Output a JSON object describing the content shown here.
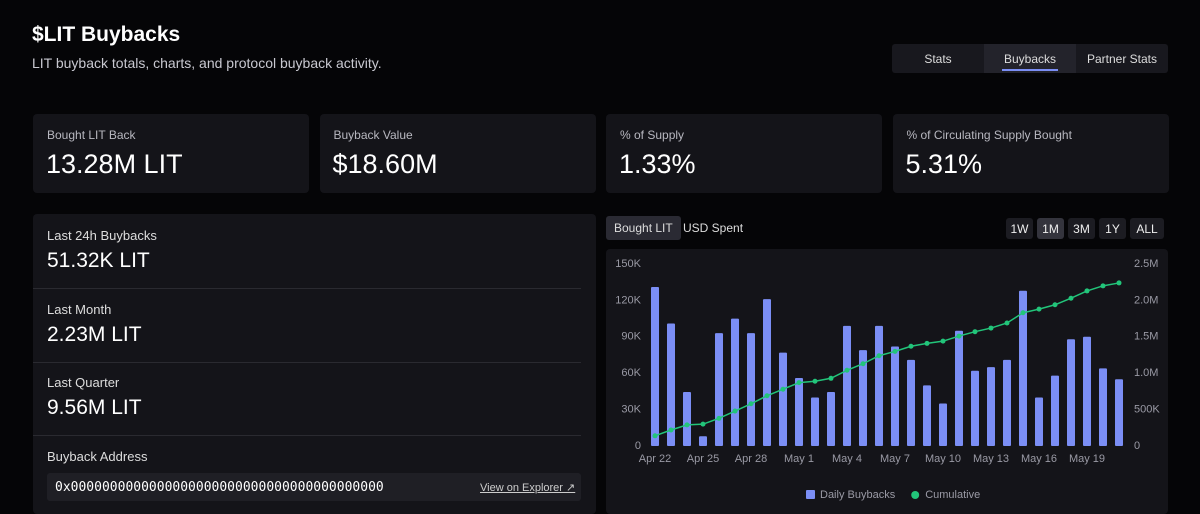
{
  "header": {
    "title": "$LIT Buybacks",
    "subtitle": "LIT buyback totals, charts, and protocol buyback activity."
  },
  "tabs": {
    "items": [
      "Stats",
      "Buybacks",
      "Partner Stats"
    ],
    "active": 1
  },
  "stats": [
    {
      "label": "Bought LIT Back",
      "value": "13.28M LIT"
    },
    {
      "label": "Buyback Value",
      "value": "$18.60M"
    },
    {
      "label": "% of Supply",
      "value": "1.33%"
    },
    {
      "label": "% of Circulating Supply Bought",
      "value": "5.31%"
    }
  ],
  "summary": [
    {
      "label": "Last 24h Buybacks",
      "value": "51.32K LIT"
    },
    {
      "label": "Last Month",
      "value": "2.23M LIT"
    },
    {
      "label": "Last Quarter",
      "value": "9.56M LIT"
    }
  ],
  "address": {
    "label": "Buyback Address",
    "value": "0x0000000000000000000000000000000000000000",
    "link": "View on Explorer ↗"
  },
  "chart_tabs": {
    "items": [
      "Bought LIT",
      "USD Spent"
    ],
    "active": 0
  },
  "ranges": {
    "items": [
      "1W",
      "1M",
      "3M",
      "1Y",
      "ALL"
    ],
    "active": 1
  },
  "chart_data": {
    "type": "bar",
    "categories": [
      "Apr 22",
      null,
      null,
      "Apr 25",
      null,
      null,
      "Apr 28",
      null,
      null,
      "May 1",
      null,
      null,
      "May 4",
      null,
      null,
      "May 7",
      null,
      null,
      "May 10",
      null,
      null,
      "May 13",
      null,
      null,
      "May 16",
      null,
      null,
      "May 19",
      null,
      null
    ],
    "series": [
      {
        "name": "Daily Buybacks",
        "color": "#7b8ef5",
        "values": [
          131000,
          101000,
          44500,
          8000,
          93000,
          105000,
          93000,
          121000,
          77000,
          56000,
          40000,
          44500,
          99000,
          79000,
          99000,
          82000,
          71000,
          50000,
          35000,
          95000,
          62000,
          65000,
          71000,
          128000,
          40000,
          58000,
          88000,
          90000,
          64000,
          55000
        ]
      },
      {
        "name": "Cumulative",
        "color": "#22c57a",
        "type": "line",
        "axis": "y2",
        "values": [
          140000,
          220000,
          290000,
          300000,
          380000,
          480000,
          580000,
          690000,
          780000,
          870000,
          890000,
          930000,
          1040000,
          1130000,
          1240000,
          1300000,
          1370000,
          1410000,
          1440000,
          1510000,
          1570000,
          1620000,
          1690000,
          1830000,
          1880000,
          1940000,
          2030000,
          2130000,
          2200000,
          2240000
        ]
      }
    ],
    "ylim": [
      0,
      150000
    ],
    "yticks": [
      0,
      {
        "value": 30000,
        "label": "30K"
      },
      {
        "value": 60000,
        "label": "60K"
      },
      {
        "value": 90000,
        "label": "90K"
      },
      {
        "value": 120000,
        "label": "120K"
      },
      {
        "value": 150000,
        "label": "150K"
      }
    ],
    "y2lim": [
      0,
      2500000
    ],
    "y2ticks": [
      0,
      {
        "value": 500000,
        "label": "500K"
      },
      {
        "value": 1000000,
        "label": "1.0M"
      },
      {
        "value": 1500000,
        "label": "1.5M"
      },
      {
        "value": 2000000,
        "label": "2.0M"
      },
      {
        "value": 2500000,
        "label": "2.5M"
      }
    ]
  }
}
